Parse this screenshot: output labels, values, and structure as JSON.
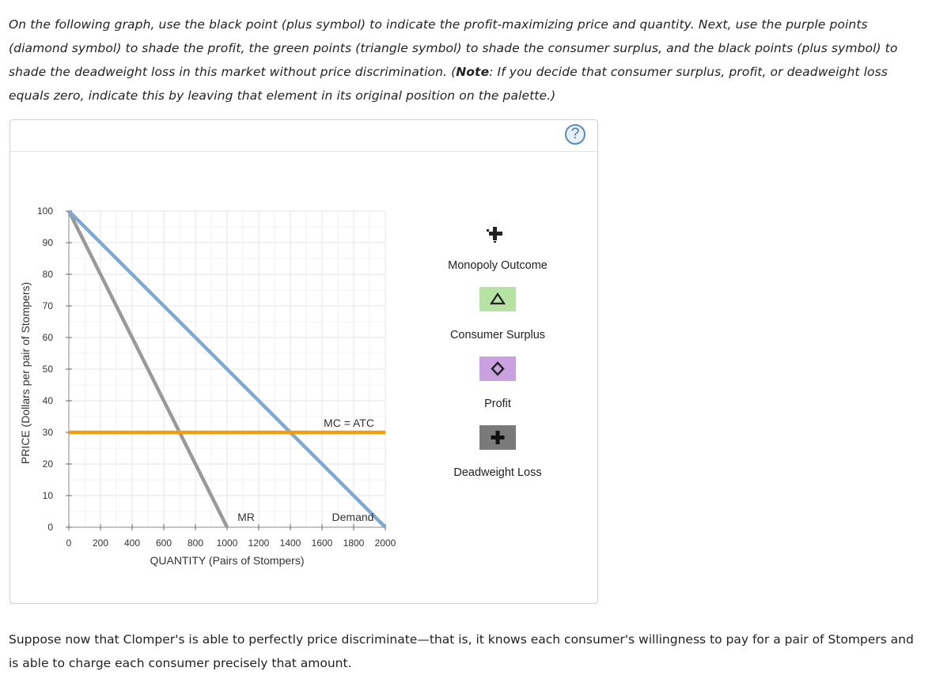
{
  "instructions": {
    "text_before_note": "On the following graph, use the black point (plus symbol) to indicate the profit-maximizing price and quantity. Next, use the purple points (diamond symbol) to shade the profit, the green points (triangle symbol) to shade the consumer surplus, and the black points (plus symbol) to shade the deadweight loss in this market without price discrimination. (",
    "note_label": "Note",
    "text_after_note": ": If you decide that consumer surplus, profit, or deadweight loss equals zero, indicate this by leaving that element in its original position on the palette.)"
  },
  "help_button": {
    "label": "?",
    "icon": "question-circle-icon"
  },
  "chart_data": {
    "type": "line",
    "xlabel": "QUANTITY (Pairs of Stompers)",
    "ylabel": "PRICE (Dollars per pair of Stompers)",
    "xlim": [
      0,
      2000
    ],
    "ylim": [
      0,
      100
    ],
    "x_ticks": [
      0,
      200,
      400,
      600,
      800,
      1000,
      1200,
      1400,
      1600,
      1800,
      2000
    ],
    "y_ticks": [
      0,
      10,
      20,
      30,
      40,
      50,
      60,
      70,
      80,
      90,
      100
    ],
    "grid": true,
    "series": [
      {
        "name": "Demand",
        "color": "#7fa9d0",
        "points": [
          [
            0,
            100
          ],
          [
            2000,
            0
          ]
        ]
      },
      {
        "name": "MR",
        "color": "#999999",
        "points": [
          [
            0,
            100
          ],
          [
            1000,
            0
          ]
        ]
      },
      {
        "name": "MC = ATC",
        "color": "#f39c12",
        "points": [
          [
            0,
            30
          ],
          [
            2000,
            30
          ]
        ]
      }
    ]
  },
  "palette": {
    "monopoly_outcome": {
      "label": "Monopoly Outcome",
      "icon": "plus-point-icon"
    },
    "consumer_surplus": {
      "label": "Consumer Surplus",
      "icon": "triangle-icon",
      "color": "#b6e3a3"
    },
    "profit": {
      "label": "Profit",
      "icon": "diamond-icon",
      "color": "#c9a0e0"
    },
    "deadweight_loss": {
      "label": "Deadweight Loss",
      "icon": "plus-icon",
      "color": "#7a7a7a"
    }
  },
  "footer": {
    "text": "Suppose now that Clomper's is able to perfectly price discriminate—that is, it knows each consumer's willingness to pay for a pair of Stompers and is able to charge each consumer precisely that amount."
  }
}
